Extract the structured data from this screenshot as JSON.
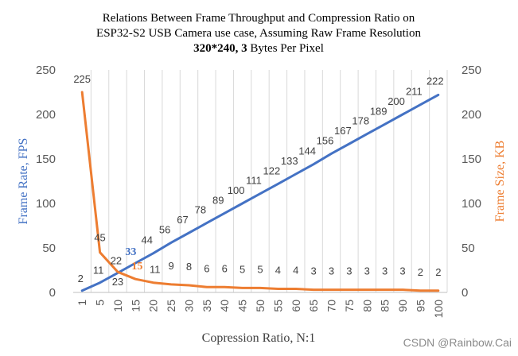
{
  "chart_data": {
    "type": "line",
    "title_lines": [
      "Relations Between Frame Throughput and Compression Ratio on",
      "ESP32-S2 USB Camera use case, Assuming Raw Frame Resolution"
    ],
    "title_line3_bold": "320*240, 3",
    "title_line3_rest": " Bytes Per Pixel",
    "xlabel": "Copression Ratio, N:1",
    "ylabel_left": "Frame Rate, FPS",
    "ylabel_right": "Frame Size, KB",
    "categories": [
      "1",
      "5",
      "10",
      "15",
      "20",
      "25",
      "30",
      "35",
      "40",
      "45",
      "50",
      "55",
      "60",
      "65",
      "70",
      "75",
      "80",
      "85",
      "90",
      "95",
      "100"
    ],
    "ylim_left": [
      0,
      250
    ],
    "ylim_right": [
      0,
      250
    ],
    "yticks": [
      "0",
      "50",
      "100",
      "150",
      "200",
      "250"
    ],
    "grid": "vertical",
    "series": [
      {
        "axis": "left",
        "color": "#4472c4",
        "values": [
          2,
          11,
          22,
          33,
          44,
          56,
          67,
          78,
          89,
          100,
          111,
          122,
          133,
          144,
          156,
          167,
          178,
          189,
          200,
          211,
          222
        ],
        "labels": [
          "2",
          "11",
          "22",
          "33",
          "44",
          "56",
          "67",
          "78",
          "89",
          "100",
          "111",
          "122",
          "133",
          "144",
          "156",
          "167",
          "178",
          "189",
          "200",
          "211",
          "222"
        ],
        "highlight_index": 3
      },
      {
        "axis": "right",
        "color": "#ed7d31",
        "values": [
          225,
          45,
          23,
          15,
          11,
          9,
          8,
          6,
          6,
          5,
          5,
          4,
          4,
          3,
          3,
          3,
          3,
          3,
          3,
          2,
          2
        ],
        "labels": [
          "225",
          "45",
          "23",
          "15",
          "11",
          "9",
          "8",
          "6",
          "6",
          "5",
          "5",
          "4",
          "4",
          "3",
          "3",
          "3",
          "3",
          "3",
          "3",
          "2",
          "2"
        ],
        "highlight_index": 3
      }
    ]
  },
  "watermark": "CSDN @Rainbow.Cai"
}
